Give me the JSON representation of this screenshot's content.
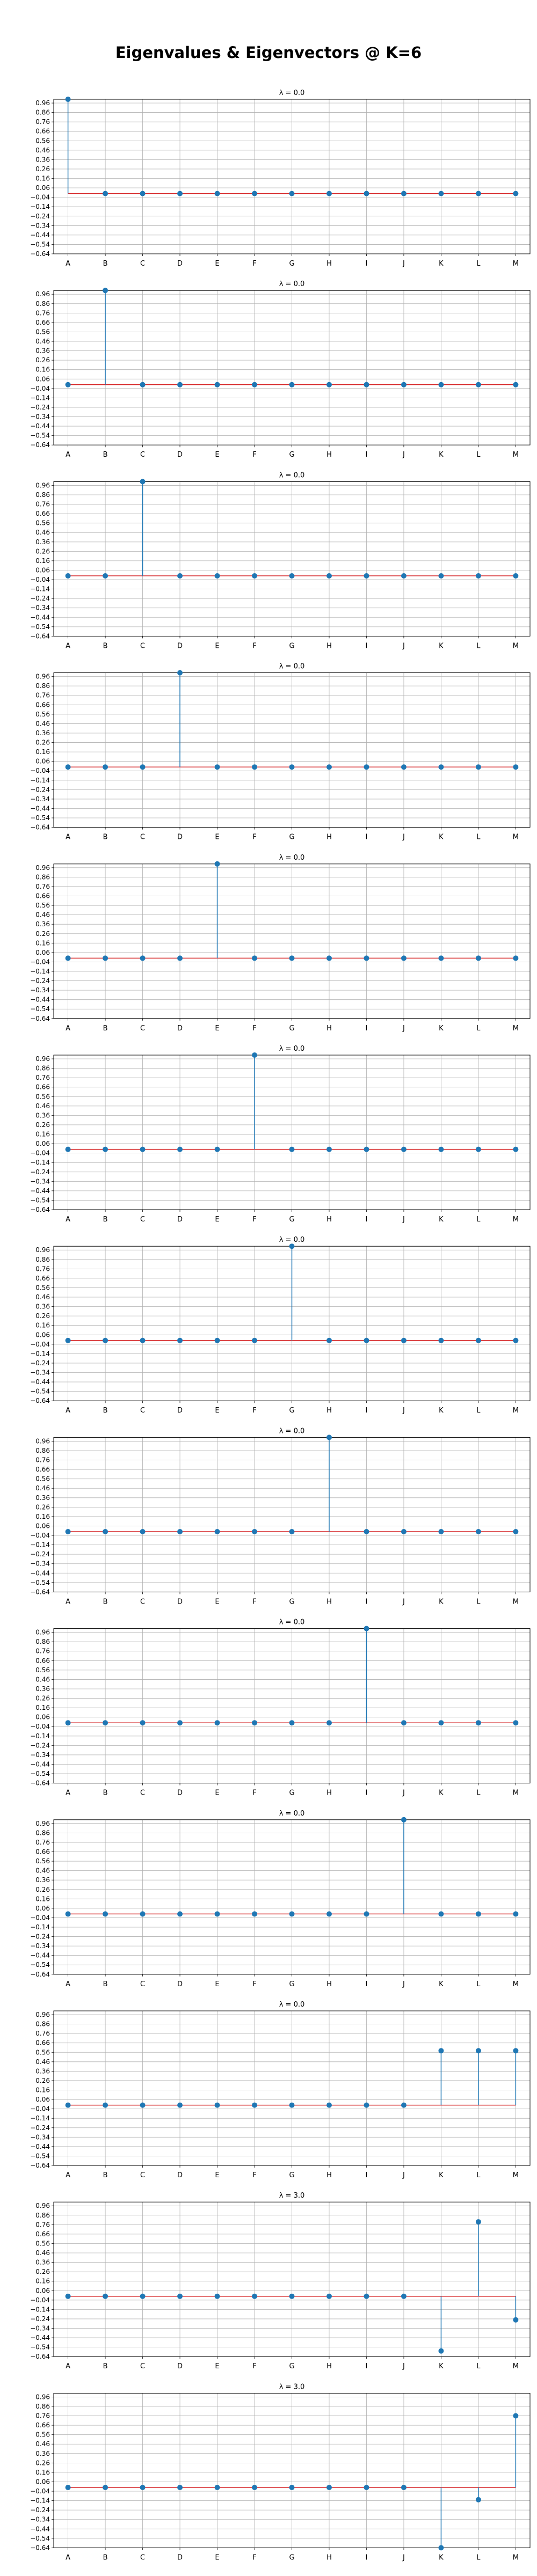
{
  "figure": {
    "title": "Eigenvalues & Eigenvectors @ K=6"
  },
  "colors": {
    "stem": "#1f77b4",
    "baseline": "#d62728",
    "grid": "#b0b0b0"
  },
  "chart_data": [
    {
      "type": "stem",
      "title": "λ = 0.0",
      "categories": [
        "A",
        "B",
        "C",
        "D",
        "E",
        "F",
        "G",
        "H",
        "I",
        "J",
        "K",
        "L",
        "M"
      ],
      "values": [
        1,
        0,
        0,
        0,
        0,
        0,
        0,
        0,
        0,
        0,
        0,
        0,
        0
      ],
      "yticks": [
        0.96,
        0.86,
        0.76,
        0.66,
        0.56,
        0.46,
        0.36,
        0.26,
        0.16,
        0.06,
        -0.04,
        -0.14,
        -0.24,
        -0.34,
        -0.44,
        -0.54,
        -0.64
      ],
      "ylim": [
        -0.64,
        1.0
      ],
      "baseline": 0,
      "grid": true
    },
    {
      "type": "stem",
      "title": "λ = 0.0",
      "categories": [
        "A",
        "B",
        "C",
        "D",
        "E",
        "F",
        "G",
        "H",
        "I",
        "J",
        "K",
        "L",
        "M"
      ],
      "values": [
        0,
        1,
        0,
        0,
        0,
        0,
        0,
        0,
        0,
        0,
        0,
        0,
        0
      ],
      "yticks": [
        0.96,
        0.86,
        0.76,
        0.66,
        0.56,
        0.46,
        0.36,
        0.26,
        0.16,
        0.06,
        -0.04,
        -0.14,
        -0.24,
        -0.34,
        -0.44,
        -0.54,
        -0.64
      ],
      "ylim": [
        -0.64,
        1.0
      ],
      "baseline": 0,
      "grid": true
    },
    {
      "type": "stem",
      "title": "λ = 0.0",
      "categories": [
        "A",
        "B",
        "C",
        "D",
        "E",
        "F",
        "G",
        "H",
        "I",
        "J",
        "K",
        "L",
        "M"
      ],
      "values": [
        0,
        0,
        1,
        0,
        0,
        0,
        0,
        0,
        0,
        0,
        0,
        0,
        0
      ],
      "yticks": [
        0.96,
        0.86,
        0.76,
        0.66,
        0.56,
        0.46,
        0.36,
        0.26,
        0.16,
        0.06,
        -0.04,
        -0.14,
        -0.24,
        -0.34,
        -0.44,
        -0.54,
        -0.64
      ],
      "ylim": [
        -0.64,
        1.0
      ],
      "baseline": 0,
      "grid": true
    },
    {
      "type": "stem",
      "title": "λ = 0.0",
      "categories": [
        "A",
        "B",
        "C",
        "D",
        "E",
        "F",
        "G",
        "H",
        "I",
        "J",
        "K",
        "L",
        "M"
      ],
      "values": [
        0,
        0,
        0,
        1,
        0,
        0,
        0,
        0,
        0,
        0,
        0,
        0,
        0
      ],
      "yticks": [
        0.96,
        0.86,
        0.76,
        0.66,
        0.56,
        0.46,
        0.36,
        0.26,
        0.16,
        0.06,
        -0.04,
        -0.14,
        -0.24,
        -0.34,
        -0.44,
        -0.54,
        -0.64
      ],
      "ylim": [
        -0.64,
        1.0
      ],
      "baseline": 0,
      "grid": true
    },
    {
      "type": "stem",
      "title": "λ = 0.0",
      "categories": [
        "A",
        "B",
        "C",
        "D",
        "E",
        "F",
        "G",
        "H",
        "I",
        "J",
        "K",
        "L",
        "M"
      ],
      "values": [
        0,
        0,
        0,
        0,
        1,
        0,
        0,
        0,
        0,
        0,
        0,
        0,
        0
      ],
      "yticks": [
        0.96,
        0.86,
        0.76,
        0.66,
        0.56,
        0.46,
        0.36,
        0.26,
        0.16,
        0.06,
        -0.04,
        -0.14,
        -0.24,
        -0.34,
        -0.44,
        -0.54,
        -0.64
      ],
      "ylim": [
        -0.64,
        1.0
      ],
      "baseline": 0,
      "grid": true
    },
    {
      "type": "stem",
      "title": "λ = 0.0",
      "categories": [
        "A",
        "B",
        "C",
        "D",
        "E",
        "F",
        "G",
        "H",
        "I",
        "J",
        "K",
        "L",
        "M"
      ],
      "values": [
        0,
        0,
        0,
        0,
        0,
        1,
        0,
        0,
        0,
        0,
        0,
        0,
        0
      ],
      "yticks": [
        0.96,
        0.86,
        0.76,
        0.66,
        0.56,
        0.46,
        0.36,
        0.26,
        0.16,
        0.06,
        -0.04,
        -0.14,
        -0.24,
        -0.34,
        -0.44,
        -0.54,
        -0.64
      ],
      "ylim": [
        -0.64,
        1.0
      ],
      "baseline": 0,
      "grid": true
    },
    {
      "type": "stem",
      "title": "λ = 0.0",
      "categories": [
        "A",
        "B",
        "C",
        "D",
        "E",
        "F",
        "G",
        "H",
        "I",
        "J",
        "K",
        "L",
        "M"
      ],
      "values": [
        0,
        0,
        0,
        0,
        0,
        0,
        1,
        0,
        0,
        0,
        0,
        0,
        0
      ],
      "yticks": [
        0.96,
        0.86,
        0.76,
        0.66,
        0.56,
        0.46,
        0.36,
        0.26,
        0.16,
        0.06,
        -0.04,
        -0.14,
        -0.24,
        -0.34,
        -0.44,
        -0.54,
        -0.64
      ],
      "ylim": [
        -0.64,
        1.0
      ],
      "baseline": 0,
      "grid": true
    },
    {
      "type": "stem",
      "title": "λ = 0.0",
      "categories": [
        "A",
        "B",
        "C",
        "D",
        "E",
        "F",
        "G",
        "H",
        "I",
        "J",
        "K",
        "L",
        "M"
      ],
      "values": [
        0,
        0,
        0,
        0,
        0,
        0,
        0,
        1,
        0,
        0,
        0,
        0,
        0
      ],
      "yticks": [
        0.96,
        0.86,
        0.76,
        0.66,
        0.56,
        0.46,
        0.36,
        0.26,
        0.16,
        0.06,
        -0.04,
        -0.14,
        -0.24,
        -0.34,
        -0.44,
        -0.54,
        -0.64
      ],
      "ylim": [
        -0.64,
        1.0
      ],
      "baseline": 0,
      "grid": true
    },
    {
      "type": "stem",
      "title": "λ = 0.0",
      "categories": [
        "A",
        "B",
        "C",
        "D",
        "E",
        "F",
        "G",
        "H",
        "I",
        "J",
        "K",
        "L",
        "M"
      ],
      "values": [
        0,
        0,
        0,
        0,
        0,
        0,
        0,
        0,
        1,
        0,
        0,
        0,
        0
      ],
      "yticks": [
        0.96,
        0.86,
        0.76,
        0.66,
        0.56,
        0.46,
        0.36,
        0.26,
        0.16,
        0.06,
        -0.04,
        -0.14,
        -0.24,
        -0.34,
        -0.44,
        -0.54,
        -0.64
      ],
      "ylim": [
        -0.64,
        1.0
      ],
      "baseline": 0,
      "grid": true
    },
    {
      "type": "stem",
      "title": "λ = 0.0",
      "categories": [
        "A",
        "B",
        "C",
        "D",
        "E",
        "F",
        "G",
        "H",
        "I",
        "J",
        "K",
        "L",
        "M"
      ],
      "values": [
        0,
        0,
        0,
        0,
        0,
        0,
        0,
        0,
        0,
        1,
        0,
        0,
        0
      ],
      "yticks": [
        0.96,
        0.86,
        0.76,
        0.66,
        0.56,
        0.46,
        0.36,
        0.26,
        0.16,
        0.06,
        -0.04,
        -0.14,
        -0.24,
        -0.34,
        -0.44,
        -0.54,
        -0.64
      ],
      "ylim": [
        -0.64,
        1.0
      ],
      "baseline": 0,
      "grid": true
    },
    {
      "type": "stem",
      "title": "λ = 0.0",
      "categories": [
        "A",
        "B",
        "C",
        "D",
        "E",
        "F",
        "G",
        "H",
        "I",
        "J",
        "K",
        "L",
        "M"
      ],
      "values": [
        0,
        0,
        0,
        0,
        0,
        0,
        0,
        0,
        0,
        0,
        0.577,
        0.577,
        0.577
      ],
      "yticks": [
        0.96,
        0.86,
        0.76,
        0.66,
        0.56,
        0.46,
        0.36,
        0.26,
        0.16,
        0.06,
        -0.04,
        -0.14,
        -0.24,
        -0.34,
        -0.44,
        -0.54,
        -0.64
      ],
      "ylim": [
        -0.64,
        1.0
      ],
      "baseline": 0,
      "grid": true
    },
    {
      "type": "stem",
      "title": "λ = 3.0",
      "categories": [
        "A",
        "B",
        "C",
        "D",
        "E",
        "F",
        "G",
        "H",
        "I",
        "J",
        "K",
        "L",
        "M"
      ],
      "values": [
        0,
        0,
        0,
        0,
        0,
        0,
        0,
        0,
        0,
        0,
        -0.58,
        0.79,
        -0.25
      ],
      "yticks": [
        0.96,
        0.86,
        0.76,
        0.66,
        0.56,
        0.46,
        0.36,
        0.26,
        0.16,
        0.06,
        -0.04,
        -0.14,
        -0.24,
        -0.34,
        -0.44,
        -0.54,
        -0.64
      ],
      "ylim": [
        -0.64,
        1.0
      ],
      "baseline": 0,
      "grid": true
    },
    {
      "type": "stem",
      "title": "λ = 3.0",
      "categories": [
        "A",
        "B",
        "C",
        "D",
        "E",
        "F",
        "G",
        "H",
        "I",
        "J",
        "K",
        "L",
        "M"
      ],
      "values": [
        0,
        0,
        0,
        0,
        0,
        0,
        0,
        0,
        0,
        0,
        -0.64,
        -0.13,
        0.76
      ],
      "yticks": [
        0.96,
        0.86,
        0.76,
        0.66,
        0.56,
        0.46,
        0.36,
        0.26,
        0.16,
        0.06,
        -0.04,
        -0.14,
        -0.24,
        -0.34,
        -0.44,
        -0.54,
        -0.64
      ],
      "ylim": [
        -0.64,
        1.0
      ],
      "baseline": 0,
      "grid": true
    }
  ]
}
